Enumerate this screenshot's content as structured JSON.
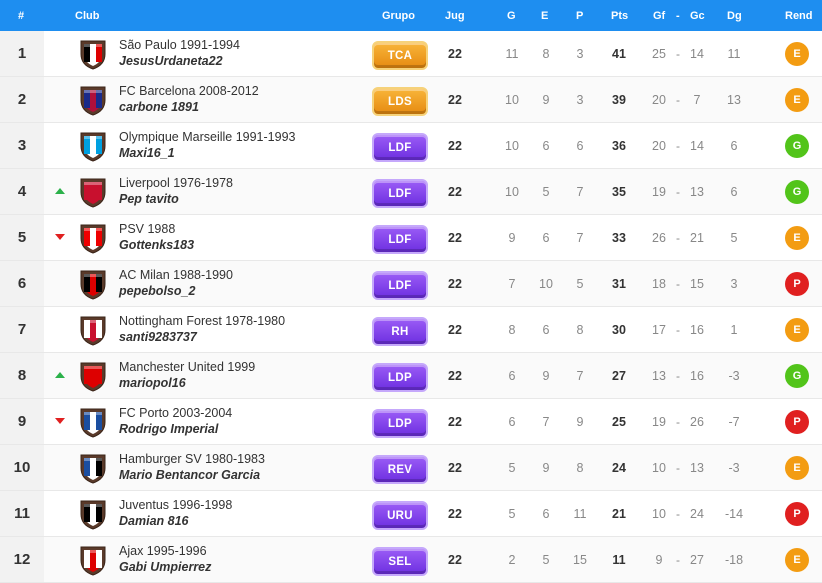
{
  "header": {
    "rank": "#",
    "club": "Club",
    "group": "Grupo",
    "played": "Jug",
    "won": "G",
    "drawn": "E",
    "lost": "P",
    "points": "Pts",
    "goals_for": "Gf",
    "goals_sep": "-",
    "goals_against": "Gc",
    "goal_diff": "Dg",
    "form": "Rend"
  },
  "colors": {
    "header_bg": "#1e8ef0",
    "group_orange": "#f39c12",
    "group_purple": "#8e44ef",
    "rend_E": "#f39c12",
    "rend_G": "#52c41a",
    "rend_P": "#e02020"
  },
  "rows": [
    {
      "rank": "1",
      "trend": "none",
      "crest": "crest-sao-paulo",
      "club": "São Paulo 1991-1994",
      "user": "JesusUrdaneta22",
      "group": "TCA",
      "group_color": "orange",
      "jug": "22",
      "g": "11",
      "e": "8",
      "p": "3",
      "pts": "41",
      "gf": "25",
      "sep": "-",
      "gc": "14",
      "dg": "11",
      "rend": "E"
    },
    {
      "rank": "2",
      "trend": "none",
      "crest": "crest-barcelona",
      "club": "FC Barcelona 2008-2012",
      "user": "carbone 1891",
      "group": "LDS",
      "group_color": "orange",
      "jug": "22",
      "g": "10",
      "e": "9",
      "p": "3",
      "pts": "39",
      "gf": "20",
      "sep": "-",
      "gc": "7",
      "dg": "13",
      "rend": "E"
    },
    {
      "rank": "3",
      "trend": "none",
      "crest": "crest-marseille",
      "club": "Olympique Marseille 1991-1993",
      "user": "Maxi16_1",
      "group": "LDF",
      "group_color": "purple",
      "jug": "22",
      "g": "10",
      "e": "6",
      "p": "6",
      "pts": "36",
      "gf": "20",
      "sep": "-",
      "gc": "14",
      "dg": "6",
      "rend": "G"
    },
    {
      "rank": "4",
      "trend": "up",
      "crest": "crest-liverpool",
      "club": "Liverpool 1976-1978",
      "user": "Pep tavito",
      "group": "LDF",
      "group_color": "purple",
      "jug": "22",
      "g": "10",
      "e": "5",
      "p": "7",
      "pts": "35",
      "gf": "19",
      "sep": "-",
      "gc": "13",
      "dg": "6",
      "rend": "G"
    },
    {
      "rank": "5",
      "trend": "down",
      "crest": "crest-psv",
      "club": "PSV 1988",
      "user": "Gottenks183",
      "group": "LDF",
      "group_color": "purple",
      "jug": "22",
      "g": "9",
      "e": "6",
      "p": "7",
      "pts": "33",
      "gf": "26",
      "sep": "-",
      "gc": "21",
      "dg": "5",
      "rend": "E"
    },
    {
      "rank": "6",
      "trend": "none",
      "crest": "crest-ac-milan",
      "club": "AC Milan 1988-1990",
      "user": "pepebolso_2",
      "group": "LDF",
      "group_color": "purple",
      "jug": "22",
      "g": "7",
      "e": "10",
      "p": "5",
      "pts": "31",
      "gf": "18",
      "sep": "-",
      "gc": "15",
      "dg": "3",
      "rend": "P"
    },
    {
      "rank": "7",
      "trend": "none",
      "crest": "crest-nottingham",
      "club": "Nottingham Forest 1978-1980",
      "user": "santi9283737",
      "group": "RH",
      "group_color": "purple",
      "jug": "22",
      "g": "8",
      "e": "6",
      "p": "8",
      "pts": "30",
      "gf": "17",
      "sep": "-",
      "gc": "16",
      "dg": "1",
      "rend": "E"
    },
    {
      "rank": "8",
      "trend": "up",
      "crest": "crest-man-united",
      "club": "Manchester United 1999",
      "user": "mariopol16",
      "group": "LDP",
      "group_color": "purple",
      "jug": "22",
      "g": "6",
      "e": "9",
      "p": "7",
      "pts": "27",
      "gf": "13",
      "sep": "-",
      "gc": "16",
      "dg": "-3",
      "rend": "G"
    },
    {
      "rank": "9",
      "trend": "down",
      "crest": "crest-porto",
      "club": "FC Porto 2003-2004",
      "user": "Rodrigo Imperial",
      "group": "LDP",
      "group_color": "purple",
      "jug": "22",
      "g": "6",
      "e": "7",
      "p": "9",
      "pts": "25",
      "gf": "19",
      "sep": "-",
      "gc": "26",
      "dg": "-7",
      "rend": "P"
    },
    {
      "rank": "10",
      "trend": "none",
      "crest": "crest-hamburger",
      "club": "Hamburger SV 1980-1983",
      "user": "Mario Bentancor Garcia",
      "group": "REV",
      "group_color": "purple",
      "jug": "22",
      "g": "5",
      "e": "9",
      "p": "8",
      "pts": "24",
      "gf": "10",
      "sep": "-",
      "gc": "13",
      "dg": "-3",
      "rend": "E"
    },
    {
      "rank": "11",
      "trend": "none",
      "crest": "crest-juventus",
      "club": "Juventus 1996-1998",
      "user": "Damian 816",
      "group": "URU",
      "group_color": "purple",
      "jug": "22",
      "g": "5",
      "e": "6",
      "p": "11",
      "pts": "21",
      "gf": "10",
      "sep": "-",
      "gc": "24",
      "dg": "-14",
      "rend": "P"
    },
    {
      "rank": "12",
      "trend": "none",
      "crest": "crest-ajax",
      "club": "Ajax 1995-1996",
      "user": "Gabi Umpierrez",
      "group": "SEL",
      "group_color": "purple",
      "jug": "22",
      "g": "2",
      "e": "5",
      "p": "15",
      "pts": "11",
      "gf": "9",
      "sep": "-",
      "gc": "27",
      "dg": "-18",
      "rend": "E"
    }
  ]
}
